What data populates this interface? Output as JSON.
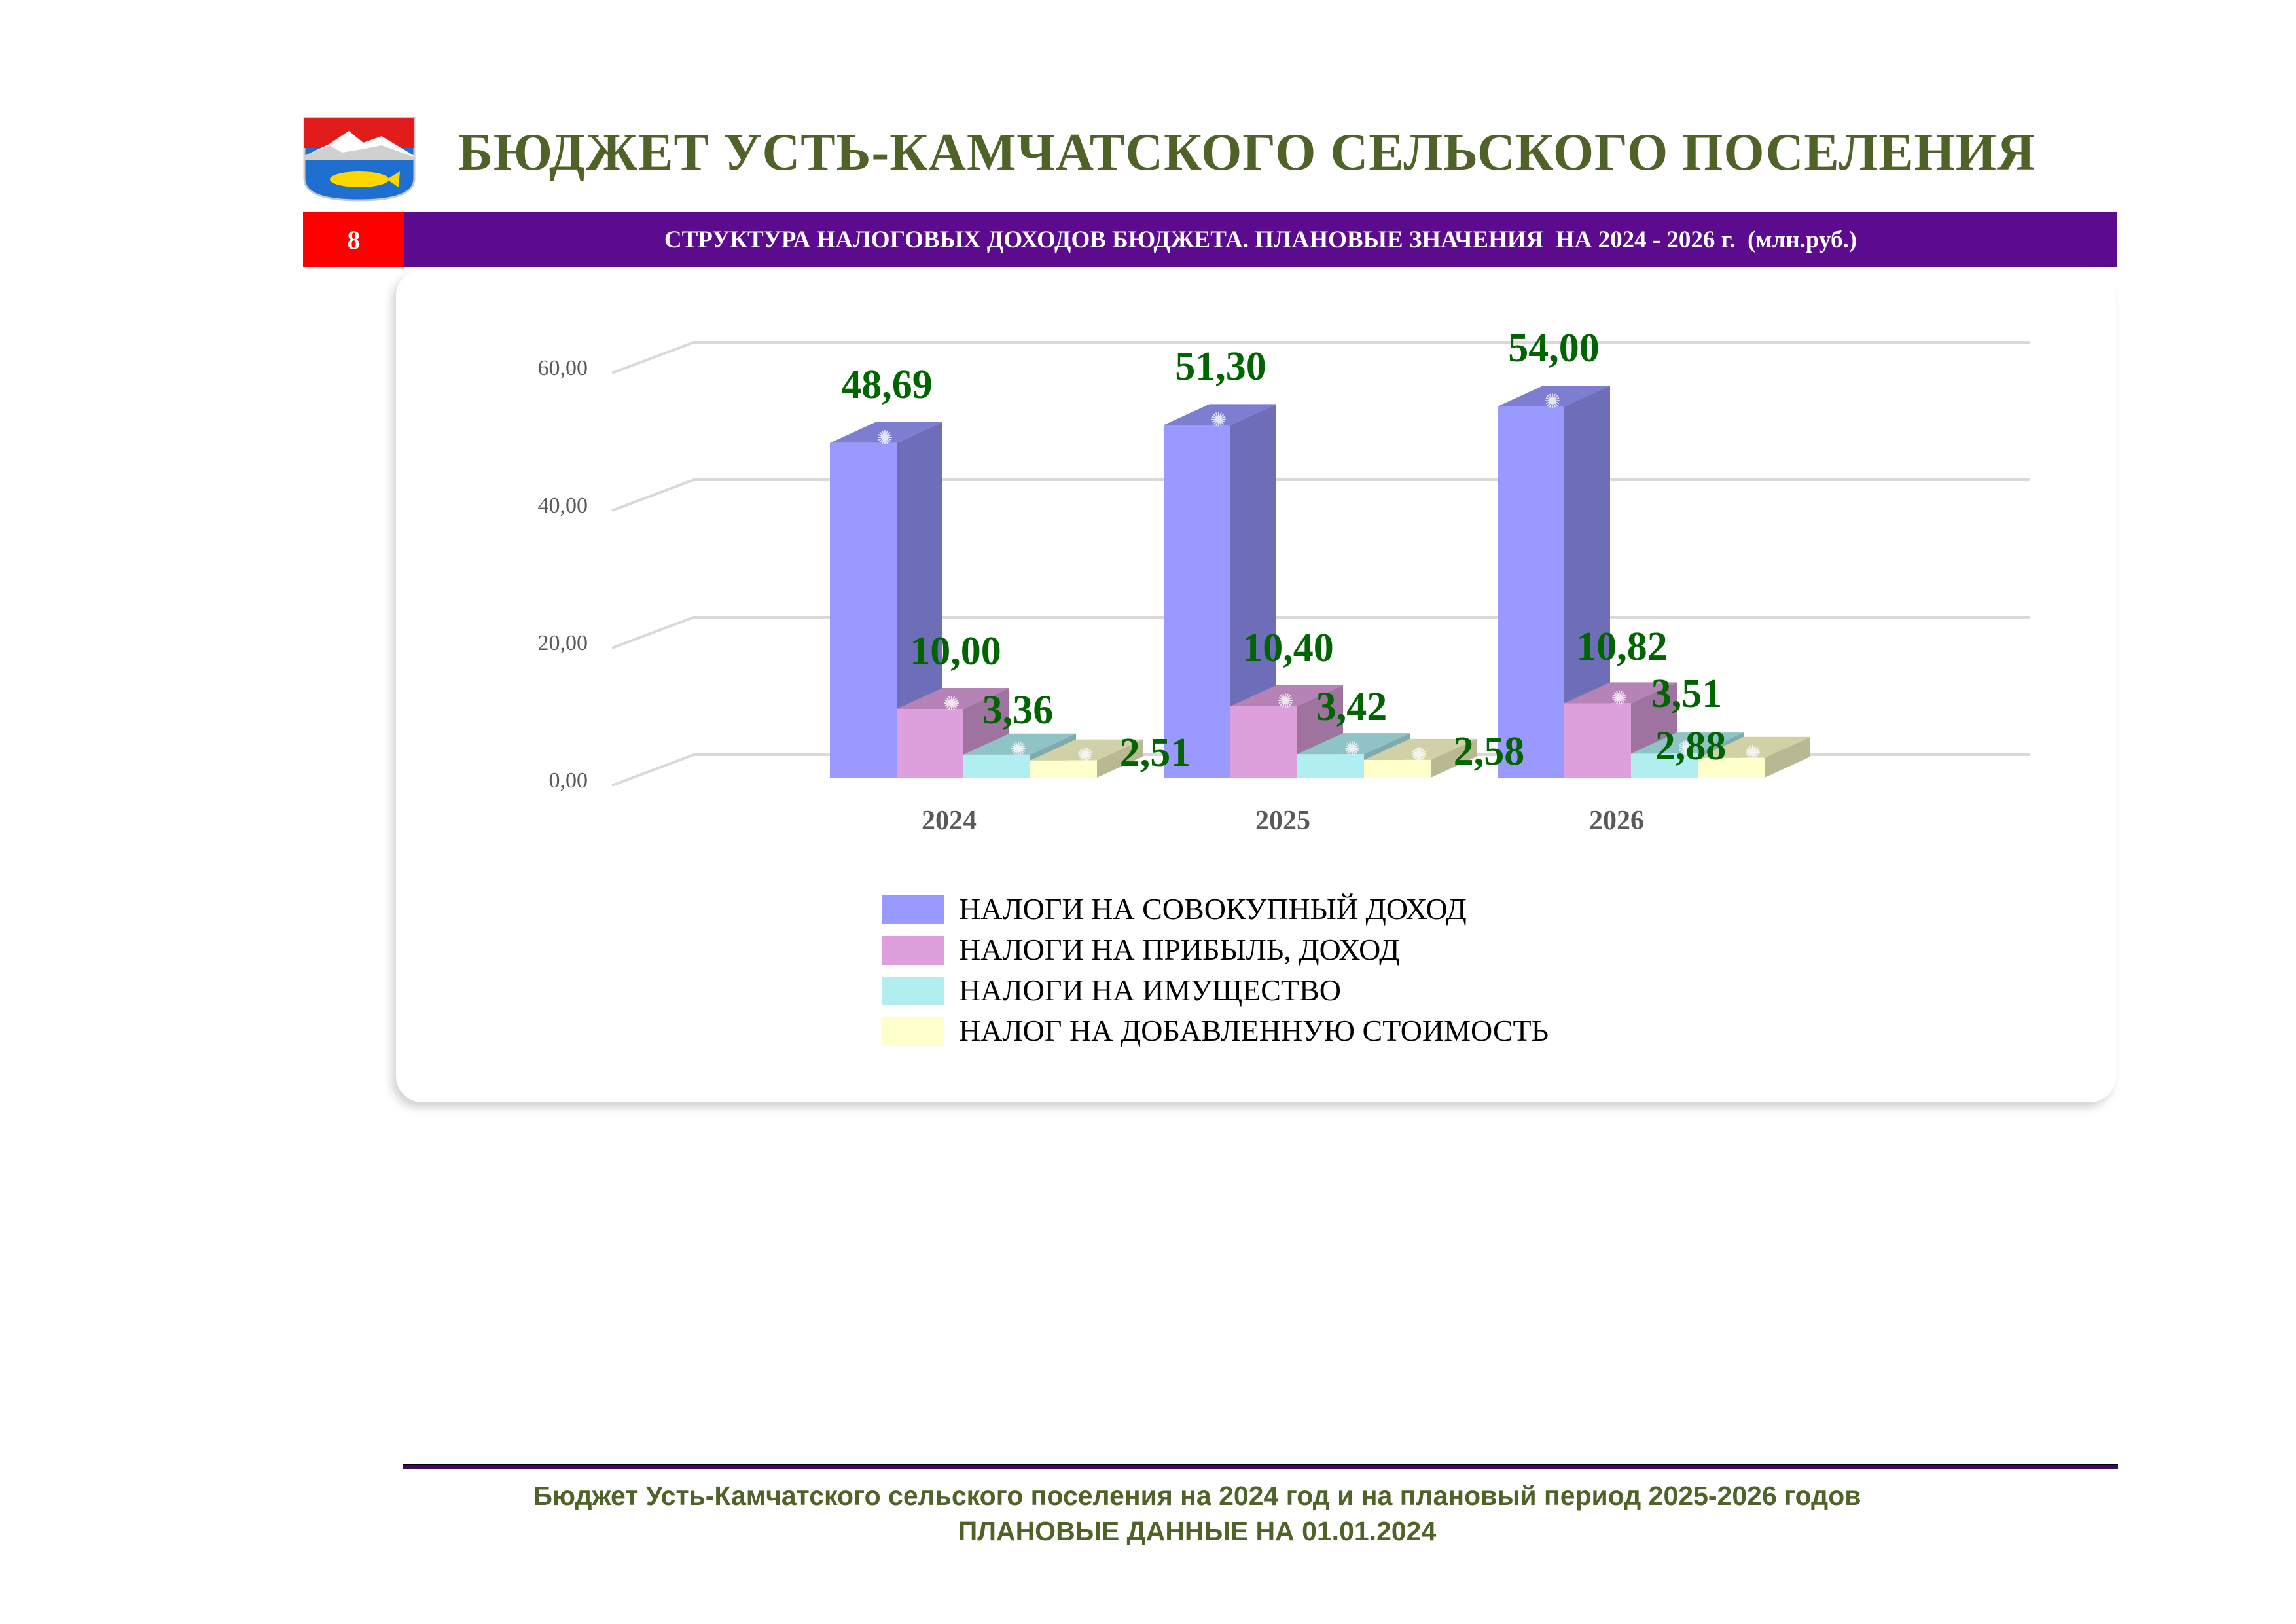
{
  "header": {
    "title": "БЮДЖЕТ УСТЬ-КАМЧАТСКОГО СЕЛЬСКОГО ПОСЕЛЕНИЯ",
    "slide_number": "8",
    "subtitle": "СТРУКТУРА НАЛОГОВЫХ ДОХОДОВ БЮДЖЕТА. ПЛАНОВЫЕ ЗНАЧЕНИЯ  НА 2024 - 2026 г.  (млн.руб.)",
    "coat_of_arms": "coat-of-arms-icon"
  },
  "chart_data": {
    "type": "bar",
    "categories": [
      "2024",
      "2025",
      "2026"
    ],
    "series": [
      {
        "name": "НАЛОГИ НА СОВОКУПНЫЙ ДОХОД",
        "values": [
          48.69,
          51.3,
          54.0
        ],
        "labels": [
          "48,69",
          "51,30",
          "54,00"
        ],
        "color": "#9999ff"
      },
      {
        "name": "НАЛОГИ НА ПРИБЫЛЬ, ДОХОД",
        "values": [
          10.0,
          10.4,
          10.82
        ],
        "labels": [
          "10,00",
          "10,40",
          "10,82"
        ],
        "color": "#dda0dd"
      },
      {
        "name": "НАЛОГИ НА ИМУЩЕСТВО",
        "values": [
          3.36,
          3.42,
          3.51
        ],
        "labels": [
          "3,36",
          "3,42",
          "3,51"
        ],
        "color": "#b0eef0"
      },
      {
        "name": "НАЛОГ НА ДОБАВЛЕННУЮ СТОИМОСТЬ",
        "values": [
          2.51,
          2.58,
          2.88
        ],
        "labels": [
          "2,51",
          "2,58",
          "2,88"
        ],
        "color": "#ffffcc"
      }
    ],
    "y_ticks": [
      "0,00",
      "20,00",
      "40,00",
      "60,00"
    ],
    "ylim": [
      0,
      60
    ],
    "grid": true,
    "legend_position": "bottom",
    "three_d": true,
    "label_color": "#006400"
  },
  "footer": {
    "line1": "Бюджет Усть-Камчатского сельского поселения на 2024 год и на плановый период 2025-2026 годов",
    "line2": "ПЛАНОВЫЕ ДАННЫЕ НА 01.01.2024"
  }
}
